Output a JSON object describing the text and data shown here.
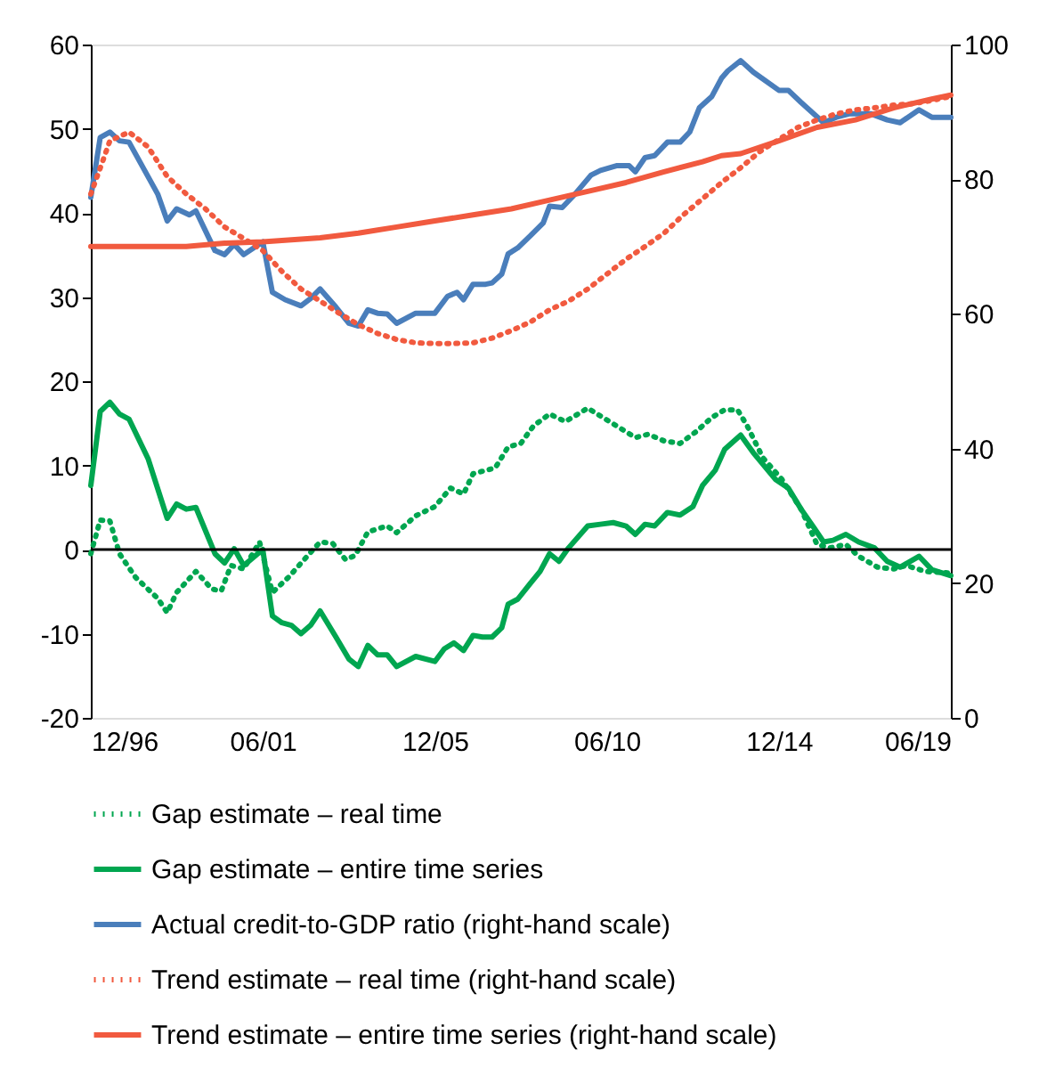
{
  "chart_data": {
    "type": "line",
    "xlim": [
      "1996-12",
      "2019-06"
    ],
    "xticks": [
      {
        "value": "1996-12",
        "label": "12/96"
      },
      {
        "value": "2001-06",
        "label": "06/01"
      },
      {
        "value": "2005-12",
        "label": "12/05"
      },
      {
        "value": "2010-06",
        "label": "06/10"
      },
      {
        "value": "2014-12",
        "label": "12/14"
      },
      {
        "value": "2019-06",
        "label": "06/19"
      }
    ],
    "ylim": [
      -20,
      60
    ],
    "yticks": [
      -20,
      -10,
      0,
      10,
      20,
      30,
      40,
      50,
      60
    ],
    "y2lim": [
      0,
      100
    ],
    "y2ticks": [
      0,
      20,
      40,
      60,
      80,
      100
    ],
    "grid": false,
    "legend": "bottom",
    "ref_lines": [
      {
        "axis": "y",
        "value": 0,
        "color": "#000000"
      }
    ],
    "series": [
      {
        "name": "Gap estimate – real time",
        "color": "#00a650",
        "line_style": "dotted",
        "x": [
          "1996-12",
          "1997-03",
          "1997-06",
          "1997-09",
          "1998-02",
          "1998-09",
          "1998-12",
          "1999-03",
          "1999-09",
          "2000-02",
          "2000-05",
          "2000-08",
          "2000-12",
          "2001-05",
          "2001-09",
          "2002-02",
          "2002-07",
          "2002-12",
          "2003-04",
          "2003-08",
          "2003-11",
          "2004-03",
          "2004-09",
          "2004-12",
          "2005-06",
          "2005-12",
          "2006-05",
          "2006-09",
          "2006-12",
          "2007-07",
          "2007-11",
          "2008-03",
          "2008-07",
          "2008-12",
          "2009-05",
          "2009-12",
          "2010-03",
          "2010-09",
          "2011-03",
          "2011-07",
          "2011-12",
          "2012-05",
          "2012-10",
          "2013-03",
          "2013-07",
          "2013-11",
          "2014-02",
          "2014-07",
          "2015-01",
          "2015-07",
          "2015-12",
          "2016-04",
          "2016-09",
          "2017-01",
          "2017-07",
          "2017-12",
          "2018-04",
          "2018-10",
          "2019-06"
        ],
        "values": [
          -0.5,
          3.5,
          3.4,
          -0.5,
          -3.3,
          -5.8,
          -7.5,
          -5.1,
          -2.6,
          -4.7,
          -4.9,
          -1.9,
          -2.3,
          0.9,
          -5.1,
          -3.3,
          -1.2,
          0.9,
          0.7,
          -1.2,
          -0.7,
          2.1,
          2.8,
          2.0,
          4.0,
          5.1,
          7.3,
          6.6,
          9.0,
          9.7,
          12.2,
          12.6,
          14.7,
          16.1,
          15.2,
          16.8,
          16.1,
          14.7,
          13.3,
          13.7,
          12.9,
          12.6,
          14.0,
          15.7,
          16.6,
          16.6,
          14.7,
          10.9,
          8.3,
          4.8,
          0.6,
          0.2,
          0.6,
          -0.8,
          -2.1,
          -2.3,
          -1.9,
          -2.6,
          -2.8
        ]
      },
      {
        "name": "Gap estimate – entire time series",
        "color": "#00a650",
        "line_style": "solid",
        "x": [
          "1996-12",
          "1997-03",
          "1997-06",
          "1997-09",
          "1997-12",
          "1998-06",
          "1998-12",
          "1999-03",
          "1999-06",
          "1999-09",
          "2000-03",
          "2000-06",
          "2000-09",
          "2000-12",
          "2001-06",
          "2001-09",
          "2001-12",
          "2002-03",
          "2002-06",
          "2002-09",
          "2002-12",
          "2003-05",
          "2003-09",
          "2003-12",
          "2004-03",
          "2004-06",
          "2004-09",
          "2004-12",
          "2005-06",
          "2005-12",
          "2006-03",
          "2006-06",
          "2006-09",
          "2006-12",
          "2007-03",
          "2007-06",
          "2007-09",
          "2007-11",
          "2008-02",
          "2008-06",
          "2008-09",
          "2008-12",
          "2009-03",
          "2009-06",
          "2009-12",
          "2010-04",
          "2010-08",
          "2010-12",
          "2011-03",
          "2011-06",
          "2011-09",
          "2012-01",
          "2012-05",
          "2012-09",
          "2012-12",
          "2013-04",
          "2013-07",
          "2013-09",
          "2013-12",
          "2014-04",
          "2014-11",
          "2015-03",
          "2015-07",
          "2015-11",
          "2016-02",
          "2016-05",
          "2016-09",
          "2017-01",
          "2017-06",
          "2017-10",
          "2018-02",
          "2018-08",
          "2018-12",
          "2019-06"
        ],
        "values": [
          7.6,
          16.4,
          17.5,
          16.1,
          15.5,
          10.8,
          3.7,
          5.4,
          4.8,
          5.0,
          -0.5,
          -1.6,
          0.1,
          -1.9,
          0.0,
          -7.9,
          -8.7,
          -9.0,
          -10.0,
          -9.0,
          -7.3,
          -10.4,
          -13.0,
          -13.9,
          -11.4,
          -12.5,
          -12.5,
          -13.9,
          -12.7,
          -13.3,
          -11.8,
          -11.1,
          -12.0,
          -10.2,
          -10.4,
          -10.4,
          -9.3,
          -6.5,
          -5.9,
          -4.0,
          -2.6,
          -0.5,
          -1.4,
          0.2,
          2.8,
          3.0,
          3.2,
          2.8,
          1.8,
          3.0,
          2.8,
          4.4,
          4.1,
          5.1,
          7.6,
          9.4,
          11.9,
          12.6,
          13.6,
          11.5,
          8.3,
          7.3,
          4.8,
          2.6,
          0.9,
          1.1,
          1.8,
          0.9,
          0.2,
          -1.4,
          -2.1,
          -0.8,
          -2.4,
          -3.1
        ]
      },
      {
        "name": "Actual credit-to-GDP ratio (right-hand scale)",
        "color": "#4a7ebb",
        "line_style": "solid",
        "axis": "y2",
        "x": [
          "1996-12",
          "1997-03",
          "1997-06",
          "1997-09",
          "1997-12",
          "1998-09",
          "1998-12",
          "1999-03",
          "1999-07",
          "1999-09",
          "2000-03",
          "2000-06",
          "2000-09",
          "2000-12",
          "2001-06",
          "2001-09",
          "2002-01",
          "2002-06",
          "2002-09",
          "2002-12",
          "2003-05",
          "2003-09",
          "2003-12",
          "2004-03",
          "2004-06",
          "2004-09",
          "2004-12",
          "2005-06",
          "2005-12",
          "2006-04",
          "2006-07",
          "2006-09",
          "2006-12",
          "2007-04",
          "2007-06",
          "2007-09",
          "2007-11",
          "2008-02",
          "2008-06",
          "2008-10",
          "2008-12",
          "2009-04",
          "2009-08",
          "2010-01",
          "2010-04",
          "2010-09",
          "2011-01",
          "2011-03",
          "2011-06",
          "2011-09",
          "2012-01",
          "2012-05",
          "2012-08",
          "2012-11",
          "2013-03",
          "2013-06",
          "2013-08",
          "2013-12",
          "2014-04",
          "2014-12",
          "2015-03",
          "2015-07",
          "2016-02",
          "2016-06",
          "2016-10",
          "2017-05",
          "2017-10",
          "2018-02",
          "2018-08",
          "2018-12",
          "2019-06"
        ],
        "values": [
          77.3,
          86.2,
          87.0,
          85.7,
          85.5,
          77.8,
          73.8,
          75.6,
          74.7,
          75.3,
          69.4,
          68.8,
          70.3,
          68.8,
          70.7,
          63.2,
          62.1,
          61.2,
          62.3,
          63.7,
          61.0,
          58.6,
          58.2,
          60.6,
          60.1,
          60.0,
          58.6,
          60.1,
          60.1,
          62.6,
          63.2,
          62.1,
          64.4,
          64.4,
          64.6,
          65.9,
          68.9,
          69.8,
          71.6,
          73.5,
          76.0,
          75.8,
          77.8,
          80.6,
          81.3,
          82.0,
          82.0,
          81.1,
          83.2,
          83.5,
          85.5,
          85.5,
          87.0,
          90.6,
          92.3,
          95.0,
          96.1,
          97.6,
          95.9,
          93.2,
          93.2,
          91.4,
          88.4,
          89.2,
          89.7,
          89.7,
          88.8,
          88.4,
          90.3,
          89.2,
          89.2
        ]
      },
      {
        "name": "Trend estimate – real time (right-hand scale)",
        "color": "#f15a3f",
        "line_style": "dotted",
        "axis": "y2",
        "x": [
          "1996-12",
          "1997-04",
          "1997-06",
          "1997-12",
          "1998-06",
          "1998-12",
          "1999-06",
          "1999-12",
          "2000-06",
          "2000-12",
          "2001-06",
          "2001-12",
          "2002-06",
          "2002-12",
          "2003-06",
          "2003-12",
          "2004-06",
          "2004-12",
          "2005-06",
          "2005-12",
          "2006-06",
          "2006-12",
          "2007-06",
          "2007-12",
          "2008-06",
          "2008-12",
          "2009-06",
          "2009-12",
          "2010-06",
          "2010-12",
          "2011-06",
          "2011-12",
          "2012-06",
          "2012-12",
          "2013-06",
          "2013-12",
          "2014-06",
          "2014-12",
          "2015-06",
          "2015-12",
          "2016-06",
          "2016-12",
          "2017-06",
          "2017-12",
          "2018-06",
          "2018-12",
          "2019-06"
        ],
        "values": [
          77.8,
          83.0,
          85.7,
          87.0,
          84.8,
          80.4,
          77.8,
          75.6,
          72.9,
          71.2,
          69.4,
          66.3,
          63.7,
          61.9,
          60.1,
          58.4,
          57.1,
          56.2,
          55.7,
          55.6,
          55.6,
          55.7,
          56.4,
          57.5,
          58.8,
          60.6,
          61.9,
          63.7,
          65.9,
          68.1,
          70.0,
          72.0,
          74.7,
          77.1,
          79.5,
          81.7,
          84.1,
          85.9,
          87.7,
          88.8,
          89.7,
          90.3,
          90.6,
          91.0,
          91.2,
          91.7,
          92.3
        ]
      },
      {
        "name": "Trend estimate – entire time series (right-hand scale)",
        "color": "#f15a3f",
        "line_style": "solid",
        "axis": "y2",
        "x": [
          "1996-12",
          "1999-06",
          "2000-06",
          "2001-06",
          "2002-12",
          "2003-12",
          "2004-12",
          "2005-12",
          "2006-12",
          "2007-12",
          "2008-12",
          "2009-12",
          "2010-12",
          "2011-12",
          "2012-12",
          "2013-06",
          "2013-12",
          "2014-12",
          "2015-12",
          "2016-12",
          "2017-12",
          "2018-12",
          "2019-06"
        ],
        "values": [
          70.0,
          70.0,
          70.5,
          70.7,
          71.3,
          72.0,
          72.9,
          73.8,
          74.7,
          75.6,
          76.9,
          78.2,
          79.5,
          81.1,
          82.6,
          83.5,
          83.8,
          85.7,
          87.7,
          88.8,
          90.6,
          91.9,
          92.5
        ]
      }
    ]
  }
}
